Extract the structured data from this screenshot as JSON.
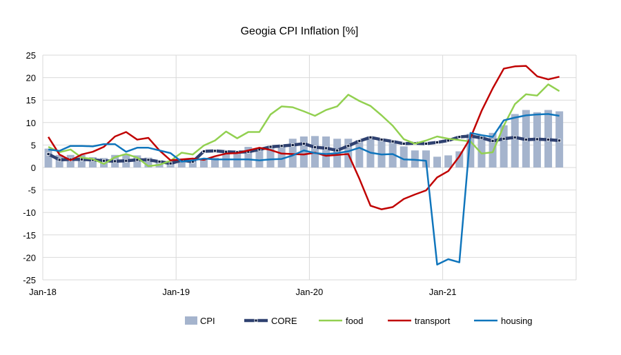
{
  "chart_data": {
    "type": "bar+line",
    "title": "Geogia CPI Inflation [%]",
    "xlabel": "",
    "ylabel": "",
    "ylim": [
      -25,
      25
    ],
    "yticks": [
      -25,
      -20,
      -15,
      -10,
      -5,
      0,
      5,
      10,
      15,
      20,
      25
    ],
    "x_tick_labels": [
      "Jan-18",
      "Jan-19",
      "Jan-20",
      "Jan-21"
    ],
    "x_start": "Jan-18",
    "x_end": "Nov-21",
    "grid": true,
    "legend": "bottom",
    "series": [
      {
        "name": "CPI",
        "type": "bar",
        "color": "#a5b4cd",
        "values": [
          4.2,
          2.8,
          2.8,
          2.8,
          2.3,
          2.1,
          2.8,
          3.0,
          2.7,
          2.2,
          1.6,
          1.5,
          1.6,
          1.6,
          1.9,
          2.2,
          3.4,
          3.8,
          4.6,
          4.3,
          4.5,
          4.9,
          6.4,
          6.9,
          7.0,
          6.9,
          6.4,
          6.4,
          6.1,
          6.9,
          6.1,
          5.6,
          4.7,
          3.8,
          3.8,
          2.4,
          2.7,
          3.6,
          7.5,
          7.2,
          7.7,
          9.4,
          11.9,
          12.8,
          12.3,
          12.8,
          12.5
        ]
      },
      {
        "name": "CORE",
        "type": "line",
        "color": "#2f4170",
        "values": [
          3.0,
          1.7,
          1.8,
          1.8,
          1.7,
          1.5,
          1.4,
          1.5,
          1.7,
          1.7,
          1.3,
          0.9,
          1.6,
          1.3,
          3.6,
          3.7,
          3.5,
          3.4,
          3.5,
          4.0,
          4.6,
          4.8,
          5.0,
          5.3,
          4.5,
          4.3,
          3.8,
          4.8,
          5.9,
          6.7,
          6.2,
          5.8,
          5.3,
          5.4,
          5.3,
          5.6,
          6.0,
          6.8,
          7.0,
          6.6,
          5.9,
          6.4,
          6.7,
          6.2,
          6.3,
          6.2,
          6.0
        ]
      },
      {
        "name": "food",
        "type": "line",
        "color": "#92d050",
        "values": [
          4.6,
          3.4,
          4.0,
          2.2,
          1.9,
          0.8,
          2.3,
          3.0,
          2.2,
          0.3,
          0.6,
          1.5,
          3.3,
          2.9,
          4.9,
          6.0,
          8.0,
          6.5,
          7.9,
          7.9,
          11.8,
          13.6,
          13.4,
          12.5,
          11.5,
          12.8,
          13.6,
          16.2,
          14.8,
          13.7,
          11.6,
          9.3,
          6.3,
          5.3,
          6.0,
          6.9,
          6.4,
          6.1,
          5.8,
          3.1,
          3.4,
          9.3,
          14.1,
          16.3,
          16.0,
          18.5,
          17.0
        ]
      },
      {
        "name": "transport",
        "type": "line",
        "color": "#c00000",
        "values": [
          6.8,
          2.9,
          1.6,
          2.9,
          3.5,
          4.6,
          6.9,
          7.9,
          6.2,
          6.6,
          3.8,
          1.6,
          1.8,
          2.0,
          1.7,
          2.5,
          3.1,
          3.2,
          3.8,
          4.4,
          3.9,
          3.1,
          3.0,
          2.9,
          3.3,
          2.6,
          2.8,
          3.0,
          -2.5,
          -8.5,
          -9.3,
          -8.8,
          -7.0,
          -6.0,
          -5.1,
          -2.2,
          -0.8,
          2.5,
          6.6,
          12.6,
          17.6,
          22.0,
          22.5,
          22.6,
          20.3,
          19.6,
          20.2
        ]
      },
      {
        "name": "housing",
        "type": "line",
        "color": "#0f75bc",
        "values": [
          4.0,
          3.7,
          4.8,
          4.8,
          4.7,
          5.2,
          5.2,
          3.5,
          4.4,
          4.4,
          3.8,
          3.2,
          1.3,
          1.6,
          2.0,
          1.8,
          1.8,
          1.8,
          1.8,
          1.6,
          1.8,
          1.9,
          2.7,
          3.8,
          3.2,
          3.0,
          3.2,
          3.6,
          4.4,
          3.3,
          2.9,
          3.0,
          1.8,
          1.7,
          1.5,
          -21.6,
          -20.4,
          -21.1,
          7.7,
          7.2,
          6.8,
          10.5,
          11.1,
          11.6,
          11.8,
          11.9,
          11.5
        ]
      }
    ]
  }
}
